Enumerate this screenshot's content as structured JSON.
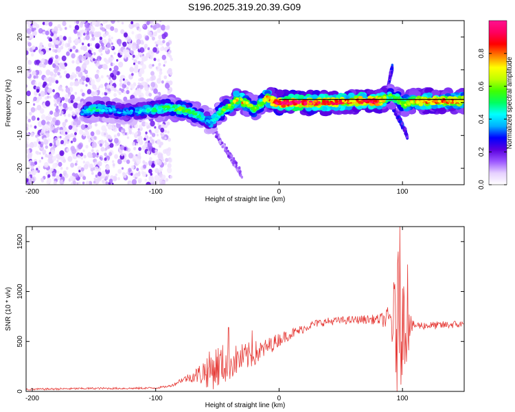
{
  "figure_title": "S196.2025.319.20.39.G09",
  "chart_data": [
    {
      "type": "heatmap",
      "title": "S196.2025.319.20.39.G09",
      "xlabel": "Height of straight line (km)",
      "ylabel": "Frequency (Hz)",
      "xlim": [
        -205,
        150
      ],
      "ylim": [
        -25,
        25
      ],
      "xticks": [
        -200,
        -100,
        0,
        100
      ],
      "yticks": [
        -20,
        -10,
        0,
        10,
        20
      ],
      "colorbar": {
        "label": "Normalized spectral amplitude",
        "range": [
          0,
          1
        ],
        "ticks": [
          0.0,
          0.2,
          0.4,
          0.6,
          0.8
        ],
        "colormap": [
          "#ffffff",
          "#e6d0ff",
          "#9a55ff",
          "#5a00e0",
          "#0000ff",
          "#00b0ff",
          "#00ffff",
          "#00ff60",
          "#40ff00",
          "#c0ff00",
          "#ffff00",
          "#ff8000",
          "#ff0000",
          "#ff0060",
          "#ff1090"
        ]
      },
      "noise_region_x": [
        -205,
        -87
      ],
      "ridge": {
        "x": [
          -160,
          -150,
          -140,
          -125,
          -100,
          -90,
          -80,
          -70,
          -60,
          -55,
          -50,
          -45,
          -40,
          -35,
          -30,
          -25,
          -20,
          -15,
          -10,
          -5,
          0,
          20,
          40,
          60,
          70,
          80,
          85,
          90,
          95,
          100,
          110,
          120,
          135,
          150
        ],
        "frequency": [
          -3,
          -2,
          -2,
          -3,
          -2,
          -1.5,
          -2,
          -3,
          -5,
          -6,
          -4,
          -2,
          -1,
          1,
          0.5,
          -0.5,
          -2,
          -0.5,
          1.5,
          0.5,
          0,
          0,
          0,
          0.5,
          0.5,
          0.5,
          1,
          2,
          1.5,
          -0.5,
          0.5,
          0.5,
          0.5,
          0.5
        ],
        "amplitude": [
          0.35,
          0.45,
          0.4,
          0.35,
          0.45,
          0.5,
          0.55,
          0.5,
          0.45,
          0.4,
          0.5,
          0.55,
          0.6,
          0.7,
          0.75,
          0.6,
          0.55,
          0.6,
          0.7,
          0.8,
          0.95,
          0.9,
          0.85,
          0.8,
          0.85,
          0.9,
          0.7,
          0.55,
          0.6,
          0.6,
          0.7,
          0.8,
          0.75,
          0.7
        ]
      },
      "reference_line_frequency": 1,
      "reference_line_xrange": [
        0,
        150
      ],
      "branches": [
        {
          "x": [
            -60,
            -50,
            -40,
            -30
          ],
          "frequency": [
            -5,
            -10,
            -16,
            -22
          ],
          "amplitude": 0.18
        },
        {
          "x": [
            88,
            90,
            92
          ],
          "frequency": [
            4,
            8,
            11
          ],
          "amplitude": 0.3
        },
        {
          "x": [
            92,
            96,
            100,
            104
          ],
          "frequency": [
            -1,
            -4,
            -7,
            -10
          ],
          "amplitude": 0.3
        }
      ]
    },
    {
      "type": "line",
      "xlabel": "Height of straight line (km)",
      "ylabel": "SNR (10 * v/v)",
      "xlim": [
        -205,
        150
      ],
      "ylim": [
        0,
        1650
      ],
      "xticks": [
        -200,
        -100,
        0,
        100
      ],
      "yticks": [
        0,
        500,
        1000,
        1500
      ],
      "series_color": "#e53935",
      "series": [
        {
          "name": "SNR",
          "x": [
            -205,
            -180,
            -150,
            -120,
            -100,
            -90,
            -85,
            -80,
            -75,
            -70,
            -65,
            -60,
            -55,
            -50,
            -45,
            -40,
            -35,
            -30,
            -25,
            -20,
            -15,
            -10,
            -5,
            0,
            5,
            10,
            15,
            20,
            25,
            30,
            40,
            50,
            60,
            70,
            80,
            85,
            90,
            92,
            94,
            96,
            98,
            100,
            102,
            104,
            106,
            108,
            110,
            120,
            130,
            140,
            150
          ],
          "mean": [
            20,
            25,
            30,
            30,
            35,
            50,
            70,
            110,
            130,
            150,
            170,
            200,
            220,
            250,
            270,
            290,
            310,
            330,
            350,
            380,
            400,
            440,
            480,
            520,
            550,
            580,
            600,
            630,
            660,
            680,
            700,
            710,
            715,
            720,
            720,
            720,
            725,
            700,
            650,
            620,
            680,
            700,
            690,
            680,
            660,
            650,
            660,
            660,
            660,
            670,
            670
          ],
          "spread": [
            10,
            10,
            10,
            10,
            10,
            10,
            15,
            25,
            40,
            60,
            100,
            160,
            200,
            230,
            210,
            180,
            160,
            150,
            140,
            130,
            110,
            90,
            80,
            70,
            60,
            55,
            50,
            45,
            40,
            40,
            40,
            40,
            40,
            45,
            50,
            80,
            150,
            350,
            550,
            800,
            700,
            500,
            450,
            400,
            150,
            60,
            40,
            40,
            40,
            40,
            40
          ],
          "peaks": [
            {
              "x": -41,
              "y": 640
            },
            {
              "x": -22,
              "y": 610
            },
            {
              "x": 96,
              "y": 1280
            },
            {
              "x": 98,
              "y": 1650
            },
            {
              "x": 104,
              "y": 1270
            }
          ]
        }
      ]
    }
  ]
}
